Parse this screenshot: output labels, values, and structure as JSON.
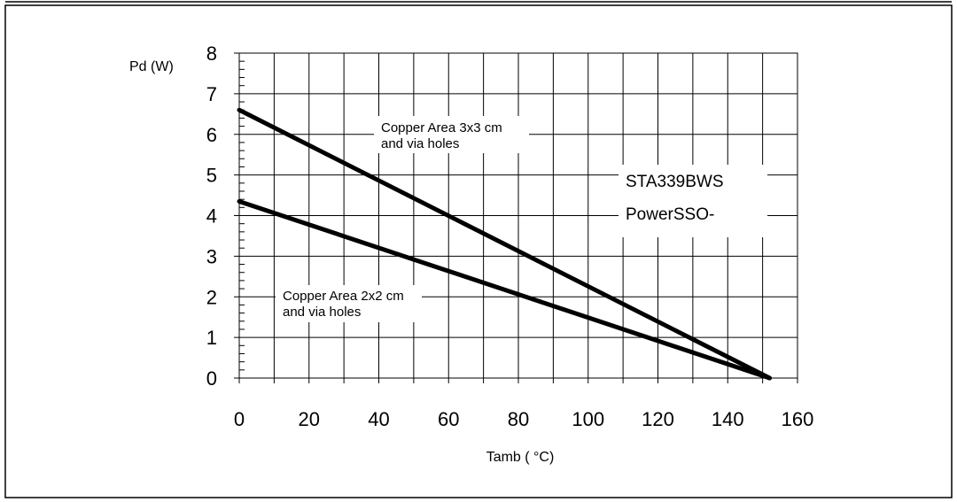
{
  "chart_data": {
    "type": "line",
    "title": "",
    "xlabel": "Tamb ( °C)",
    "ylabel": "Pd (W)",
    "xlim": [
      0,
      160
    ],
    "ylim": [
      0,
      8
    ],
    "x_ticks": [
      0,
      20,
      40,
      60,
      80,
      100,
      120,
      140,
      160
    ],
    "y_ticks": [
      0,
      1,
      2,
      3,
      4,
      5,
      6,
      7,
      8
    ],
    "grid": true,
    "legend": "none",
    "series": [
      {
        "label_lines": [
          "Copper Area 3x3 cm",
          "and via holes"
        ],
        "x": [
          0,
          152
        ],
        "y": [
          6.6,
          0
        ]
      },
      {
        "label_lines": [
          "Copper Area 2x2 cm",
          "and via holes"
        ],
        "x": [
          0,
          152
        ],
        "y": [
          4.35,
          0
        ]
      }
    ],
    "annotations": [
      "STA339BWS",
      "PowerSSO-"
    ],
    "colors": {
      "line": "#000000",
      "grid": "#000000",
      "background": "#ffffff"
    }
  }
}
